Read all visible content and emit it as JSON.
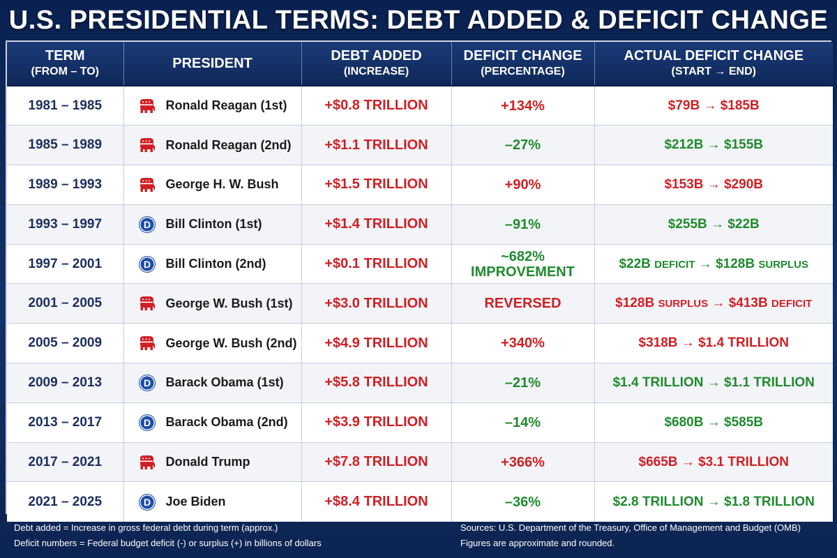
{
  "title": "U.S. PRESIDENTIAL TERMS: DEBT ADDED & DEFICIT CHANGE",
  "colors": {
    "republican": "#cf1f25",
    "democrat": "#1e4fa8",
    "increase": "#cf1f25",
    "decrease": "#1f8a2e",
    "header_bg": "#13306a"
  },
  "chart_data": {
    "type": "table",
    "title": "U.S. PRESIDENTIAL TERMS: DEBT ADDED & DEFICIT CHANGE",
    "columns": [
      {
        "label": "TERM",
        "sublabel": "(FROM – TO)"
      },
      {
        "label": "PRESIDENT",
        "sublabel": ""
      },
      {
        "label": "DEBT ADDED",
        "sublabel": "(INCREASE)"
      },
      {
        "label": "DEFICIT CHANGE",
        "sublabel": "(PERCENTAGE)"
      },
      {
        "label": "ACTUAL DEFICIT CHANGE",
        "sublabel": "(START → END)"
      }
    ],
    "rows": [
      {
        "term": "1981 – 1985",
        "party": "republican",
        "president": "Ronald Reagan (1st)",
        "debt_added": "+$0.8 TRILLION",
        "deficit_change": "+134%",
        "deficit_change_2": "",
        "direction": "worse",
        "actual_start": "$79B",
        "actual_start_note": "",
        "actual_end": "$185B",
        "actual_end_note": ""
      },
      {
        "term": "1985 – 1989",
        "party": "republican",
        "president": "Ronald Reagan (2nd)",
        "debt_added": "+$1.1 TRILLION",
        "deficit_change": "–27%",
        "deficit_change_2": "",
        "direction": "better",
        "actual_start": "$212B",
        "actual_start_note": "",
        "actual_end": "$155B",
        "actual_end_note": ""
      },
      {
        "term": "1989 – 1993",
        "party": "republican",
        "president": "George H. W. Bush",
        "debt_added": "+$1.5 TRILLION",
        "deficit_change": "+90%",
        "deficit_change_2": "",
        "direction": "worse",
        "actual_start": "$153B",
        "actual_start_note": "",
        "actual_end": "$290B",
        "actual_end_note": ""
      },
      {
        "term": "1993 – 1997",
        "party": "democrat",
        "president": "Bill Clinton (1st)",
        "debt_added": "+$1.4 TRILLION",
        "deficit_change": "–91%",
        "deficit_change_2": "",
        "direction": "better",
        "actual_start": "$255B",
        "actual_start_note": "",
        "actual_end": "$22B",
        "actual_end_note": ""
      },
      {
        "term": "1997 – 2001",
        "party": "democrat",
        "president": "Bill Clinton (2nd)",
        "debt_added": "+$0.1 TRILLION",
        "deficit_change": "~682%",
        "deficit_change_2": "IMPROVEMENT",
        "direction": "better",
        "actual_start": "$22B",
        "actual_start_note": "DEFICIT",
        "actual_end": "$128B",
        "actual_end_note": "SURPLUS"
      },
      {
        "term": "2001 – 2005",
        "party": "republican",
        "president": "George W. Bush (1st)",
        "debt_added": "+$3.0 TRILLION",
        "deficit_change": "REVERSED",
        "deficit_change_2": "",
        "direction": "worse",
        "actual_start": "$128B",
        "actual_start_note": "SURPLUS",
        "actual_end": "$413B",
        "actual_end_note": "DEFICIT"
      },
      {
        "term": "2005 – 2009",
        "party": "republican",
        "president": "George W. Bush (2nd)",
        "debt_added": "+$4.9 TRILLION",
        "deficit_change": "+340%",
        "deficit_change_2": "",
        "direction": "worse",
        "actual_start": "$318B",
        "actual_start_note": "",
        "actual_end": "$1.4 TRILLION",
        "actual_end_note": ""
      },
      {
        "term": "2009 – 2013",
        "party": "democrat",
        "president": "Barack Obama (1st)",
        "debt_added": "+$5.8 TRILLION",
        "deficit_change": "–21%",
        "deficit_change_2": "",
        "direction": "better",
        "actual_start": "$1.4 TRILLION",
        "actual_start_note": "",
        "actual_end": "$1.1 TRILLION",
        "actual_end_note": ""
      },
      {
        "term": "2013 – 2017",
        "party": "democrat",
        "president": "Barack Obama (2nd)",
        "debt_added": "+$3.9 TRILLION",
        "deficit_change": "–14%",
        "deficit_change_2": "",
        "direction": "better",
        "actual_start": "$680B",
        "actual_start_note": "",
        "actual_end": "$585B",
        "actual_end_note": ""
      },
      {
        "term": "2017 – 2021",
        "party": "republican",
        "president": "Donald Trump",
        "debt_added": "+$7.8 TRILLION",
        "deficit_change": "+366%",
        "deficit_change_2": "",
        "direction": "worse",
        "actual_start": "$665B",
        "actual_start_note": "",
        "actual_end": "$3.1 TRILLION",
        "actual_end_note": ""
      },
      {
        "term": "2021 – 2025",
        "party": "democrat",
        "president": "Joe Biden",
        "debt_added": "+$8.4 TRILLION",
        "deficit_change": "–36%",
        "deficit_change_2": "",
        "direction": "better",
        "actual_start": "$2.8 TRILLION",
        "actual_start_note": "",
        "actual_end": "$1.8 TRILLION",
        "actual_end_note": ""
      }
    ]
  },
  "arrow": "→",
  "footer": {
    "left_1": "Debt added = Increase in gross federal debt during term (approx.)",
    "left_2": "Deficit numbers = Federal budget deficit (-) or surplus (+) in billions of dollars",
    "right_1": "Sources: U.S. Department of the Treasury, Office of Management and Budget (OMB)",
    "right_2": "Figures are approximate and rounded."
  },
  "icons": {
    "republican": "elephant-icon",
    "democrat": "donkey-d-icon"
  }
}
